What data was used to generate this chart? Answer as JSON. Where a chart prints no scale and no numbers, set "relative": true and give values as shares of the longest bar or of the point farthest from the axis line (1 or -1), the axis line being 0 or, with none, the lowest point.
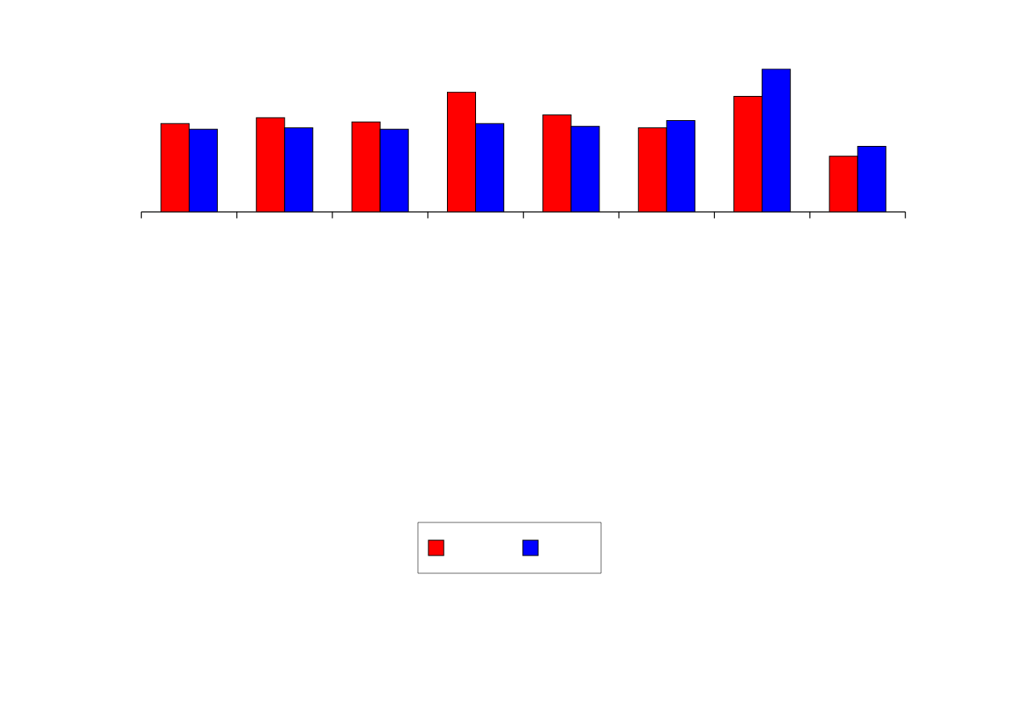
{
  "chart_data": {
    "type": "bar",
    "relative": true,
    "categories": [
      null,
      null,
      null,
      null,
      null,
      null,
      null,
      null
    ],
    "series": [
      {
        "color": "#ff0000",
        "values": [
          0.62,
          0.66,
          0.63,
          0.84,
          0.68,
          0.59,
          0.81,
          0.39
        ]
      },
      {
        "color": "#0000ff",
        "values": [
          0.58,
          0.59,
          0.58,
          0.62,
          0.6,
          0.64,
          1.0,
          0.46
        ]
      }
    ]
  }
}
